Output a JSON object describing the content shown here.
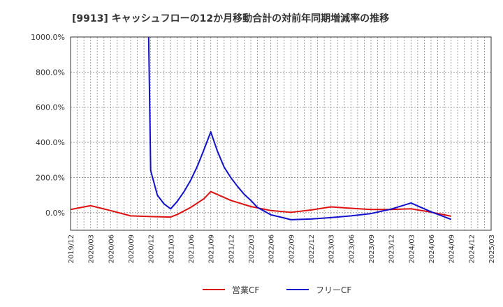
{
  "chart_data": {
    "type": "line",
    "title": "[9913]  キャッシュフローの12か月移動合計の対前年同期増減率の推移",
    "xlabel": "",
    "ylabel": "",
    "ylim": [
      -100,
      1000
    ],
    "yticks": [
      0,
      200,
      400,
      600,
      800,
      1000
    ],
    "ytick_labels": [
      "0.0%",
      "200.0%",
      "400.0%",
      "600.0%",
      "800.0%",
      "1000.0%"
    ],
    "xtick_labels": [
      "2019/12",
      "2020/03",
      "2020/06",
      "2020/09",
      "2020/12",
      "2021/03",
      "2021/06",
      "2021/09",
      "2021/12",
      "2022/03",
      "2022/06",
      "2022/09",
      "2022/12",
      "2023/03",
      "2023/06",
      "2023/09",
      "2023/12",
      "2024/03",
      "2024/06",
      "2024/09",
      "2024/12",
      "2025/03"
    ],
    "grid": true,
    "legend_position": "bottom",
    "series": [
      {
        "name": "営業CF",
        "color": "#dd1111",
        "points": [
          [
            0,
            18
          ],
          [
            3,
            40
          ],
          [
            6,
            12
          ],
          [
            9,
            -18
          ],
          [
            12,
            -22
          ],
          [
            15,
            -25
          ],
          [
            16,
            -10
          ],
          [
            18,
            30
          ],
          [
            20,
            80
          ],
          [
            21,
            120
          ],
          [
            24,
            70
          ],
          [
            27,
            35
          ],
          [
            30,
            12
          ],
          [
            33,
            2
          ],
          [
            36,
            15
          ],
          [
            39,
            33
          ],
          [
            42,
            25
          ],
          [
            45,
            18
          ],
          [
            48,
            18
          ],
          [
            51,
            22
          ],
          [
            54,
            3
          ],
          [
            57,
            -20
          ]
        ]
      },
      {
        "name": "フリーCF",
        "color": "#1111cc",
        "points": [
          [
            11.7,
            1000
          ],
          [
            12,
            240
          ],
          [
            13,
            100
          ],
          [
            14,
            50
          ],
          [
            15,
            22
          ],
          [
            16,
            65
          ],
          [
            17,
            120
          ],
          [
            18,
            185
          ],
          [
            19,
            265
          ],
          [
            20,
            360
          ],
          [
            21,
            460
          ],
          [
            22,
            350
          ],
          [
            23,
            260
          ],
          [
            24,
            200
          ],
          [
            25,
            150
          ],
          [
            26,
            105
          ],
          [
            27,
            70
          ],
          [
            28,
            30
          ],
          [
            30,
            -12
          ],
          [
            32,
            -30
          ],
          [
            33,
            -40
          ],
          [
            36,
            -36
          ],
          [
            39,
            -28
          ],
          [
            42,
            -18
          ],
          [
            45,
            -5
          ],
          [
            48,
            20
          ],
          [
            51,
            55
          ],
          [
            54,
            5
          ],
          [
            57,
            -38
          ]
        ]
      }
    ]
  }
}
